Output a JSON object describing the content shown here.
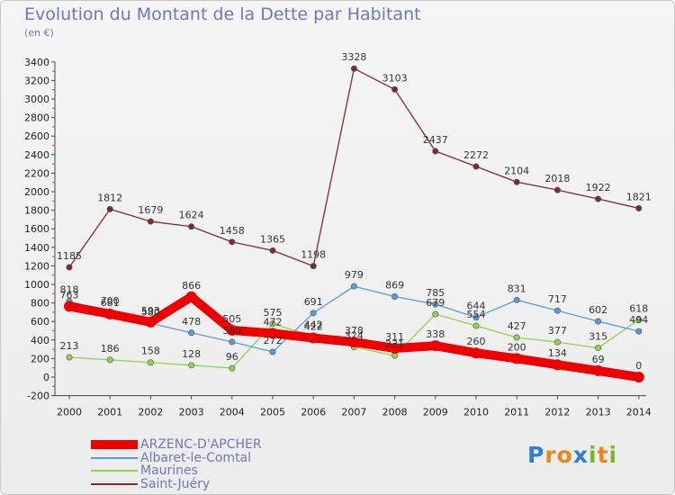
{
  "title": "Evolution du Montant de la Dette par Habitant",
  "subtitle": "(en €)",
  "logo": {
    "letters": [
      {
        "ch": "P",
        "color": "#2f7fd0"
      },
      {
        "ch": "r",
        "color": "#e8861a"
      },
      {
        "ch": "o",
        "color": "#e8861a"
      },
      {
        "ch": "x",
        "color": "#2f7fd0"
      },
      {
        "ch": "i",
        "color": "#7ab630"
      },
      {
        "ch": "t",
        "color": "#e8861a"
      },
      {
        "ch": "i",
        "color": "#7ab630"
      }
    ]
  },
  "chart_data": {
    "type": "line",
    "title": "Evolution du Montant de la Dette par Habitant",
    "subtitle": "(en €)",
    "x": [
      "2000",
      "2001",
      "2002",
      "2003",
      "2004",
      "2005",
      "2006",
      "2007",
      "2008",
      "2009",
      "2010",
      "2011",
      "2012",
      "2013",
      "2014"
    ],
    "ylim": [
      -200,
      3400
    ],
    "yticks": [
      -200,
      0,
      200,
      400,
      600,
      800,
      1000,
      1200,
      1400,
      1600,
      1800,
      2000,
      2200,
      2400,
      2600,
      2800,
      3000,
      3200,
      3400
    ],
    "grid": false,
    "legend_position": "bottom-left",
    "series": [
      {
        "name": "ARZENC-D'APCHER",
        "color": "#ee0000",
        "values": [
          763,
          681,
          593,
          866,
          505,
          472,
          422,
          378,
          311,
          338,
          260,
          200,
          134,
          69,
          0
        ],
        "labels": [
          "763",
          "681",
          "593",
          "866",
          "505",
          "472",
          "422",
          "378",
          "311",
          "338",
          "260",
          "200",
          "134",
          "69",
          "0"
        ]
      },
      {
        "name": "Albaret-le-Comtal",
        "color": "#5b9bd5",
        "values": [
          818,
          700,
          580,
          478,
          380,
          272,
          691,
          979,
          869,
          785,
          644,
          831,
          717,
          602,
          494
        ],
        "labels": [
          "818",
          "700",
          "580",
          "478",
          "380",
          "272",
          "691",
          "979",
          "869",
          "785",
          "644",
          "831",
          "717",
          "602",
          "494"
        ]
      },
      {
        "name": "Maurines",
        "color": "#92d050",
        "values": [
          213,
          186,
          158,
          128,
          96,
          575,
          442,
          324,
          231,
          679,
          554,
          427,
          377,
          315,
          618
        ],
        "labels": [
          "213",
          "186",
          "158",
          "128",
          "96",
          "575",
          "442",
          "324",
          "231",
          "679",
          "554",
          "427",
          "377",
          "315",
          "618"
        ]
      },
      {
        "name": "Saint-Juéry",
        "color": "#7b2c2c",
        "values": [
          1185,
          1812,
          1679,
          1624,
          1458,
          1365,
          1198,
          3328,
          3103,
          2437,
          2272,
          2104,
          2018,
          1922,
          1821
        ],
        "labels": [
          "1185",
          "1812",
          "1679",
          "1624",
          "1458",
          "1365",
          "1198",
          "3328",
          "3103",
          "2437",
          "2272",
          "2104",
          "2018",
          "1922",
          "1821"
        ]
      }
    ]
  }
}
